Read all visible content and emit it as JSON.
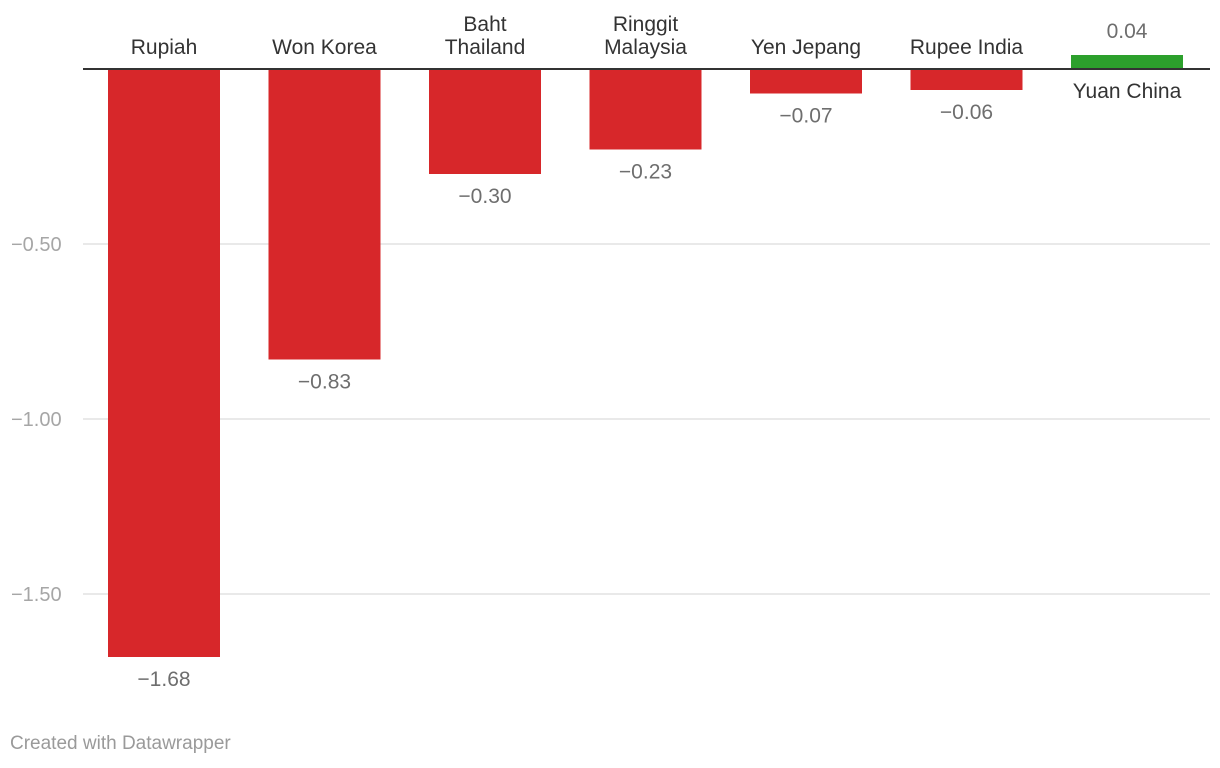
{
  "chart_data": {
    "type": "bar",
    "orientation": "vertical",
    "categories": [
      "Rupiah",
      "Won Korea",
      "Baht Thailand",
      "Ringgit Malaysia",
      "Yen Jepang",
      "Rupee India",
      "Yuan China"
    ],
    "category_lines": [
      [
        "Rupiah"
      ],
      [
        "Won Korea"
      ],
      [
        "Baht",
        "Thailand"
      ],
      [
        "Ringgit",
        "Malaysia"
      ],
      [
        "Yen Jepang"
      ],
      [
        "Rupee India"
      ],
      [
        "Yuan China"
      ]
    ],
    "values": [
      -1.68,
      -0.83,
      -0.3,
      -0.23,
      -0.07,
      -0.06,
      0.04
    ],
    "value_labels": [
      "−1.68",
      "−0.83",
      "−0.30",
      "−0.23",
      "−0.07",
      "−0.06",
      "0.04"
    ],
    "title": "",
    "xlabel": "",
    "ylabel": "",
    "ylim": [
      -1.7,
      0.04
    ],
    "yticks": [
      -0.5,
      -1.0,
      -1.5
    ],
    "ytick_labels": [
      "−0.50",
      "−1.00",
      "−1.50"
    ],
    "grid": true,
    "legend": "none",
    "colors": {
      "negative": "#d7272a",
      "positive": "#2ca02c",
      "gridline": "#e2e2e2",
      "baseline": "#333333",
      "tick_text": "#a6a6a6",
      "category_text": "#333333",
      "value_text": "#6e6e6e"
    }
  },
  "footer": {
    "credit": "Created with Datawrapper"
  }
}
